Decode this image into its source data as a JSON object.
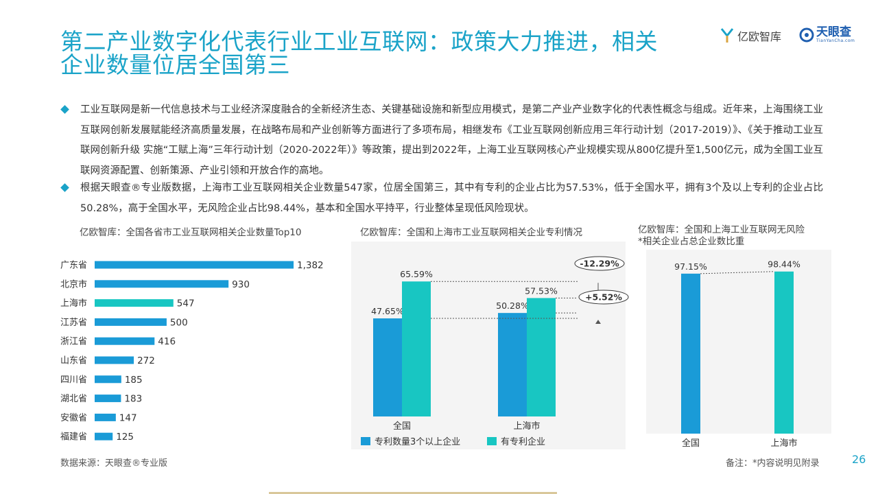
{
  "title": "第二产业数字化代表行业工业互联网：政策大力推进，相关企业数量位居全国第三",
  "logos": {
    "yiou": "亿欧智库",
    "tianyancha": "天眼查",
    "tianyancha_sub": "TianYanCha.com"
  },
  "bullets": [
    "工业互联网是新一代信息技术与工业经济深度融合的全新经济生态、关键基础设施和新型应用模式，是第二产业产业数字化的代表性概念与组成。近年来，上海围绕工业互联网创新发展赋能经济高质量发展，在战略布局和产业创新等方面进行了多项布局，相继发布《工业互联网创新应用三年行动计划（2017-2019）》、《关于推动工业互联网创新升级 实施“工赋上海”三年行动计划（2020-2022年）》等政策，提出到2022年，上海工业互联网核心产业规模实现从800亿提升至1,500亿元，成为全国工业互联网资源配置、创新策源、产业引领和开放合作的高地。",
    "根据天眼查®专业版数据，上海市工业互联网相关企业数量547家，位居全国第三，其中有专利的企业占比为57.53%，低于全国水平，拥有3个及以上专利的企业占比50.28%，高于全国水平，无风险企业占比98.44%，基本和全国水平持平，行业整体呈现低风险现状。"
  ],
  "colors": {
    "accent": "#1aa3c8",
    "blue": "#1a9bd7",
    "teal": "#18c6c2"
  },
  "source": "数据来源：天眼查®专业版",
  "note": "备注：*内容说明见附录",
  "page_number": "26",
  "chart_data": [
    {
      "type": "bar",
      "orientation": "horizontal",
      "title": "亿欧智库：全国各省市工业互联网相关企业数量Top10",
      "categories": [
        "广东省",
        "北京市",
        "上海市",
        "江苏省",
        "浙江省",
        "山东省",
        "四川省",
        "湖北省",
        "安徽省",
        "福建省"
      ],
      "values": [
        1382,
        930,
        547,
        500,
        416,
        272,
        185,
        183,
        147,
        125
      ],
      "value_labels": [
        "1,382",
        "930",
        "547",
        "500",
        "416",
        "272",
        "185",
        "183",
        "147",
        "125"
      ],
      "highlight": "上海市"
    },
    {
      "type": "bar",
      "title": "亿欧智库：全国和上海市工业互联网相关企业专利情况",
      "categories": [
        "全国",
        "上海市"
      ],
      "series": [
        {
          "name": "专利数量3个以上企业",
          "values": [
            47.65,
            50.28
          ],
          "labels": [
            "47.65%",
            "50.28%"
          ],
          "color": "#1a9bd7"
        },
        {
          "name": "有专利企业",
          "values": [
            65.59,
            57.53
          ],
          "labels": [
            "65.59%",
            "57.53%"
          ],
          "color": "#18c6c2"
        }
      ],
      "annotations": [
        "-12.29%",
        "+5.52%"
      ],
      "ylim": [
        0,
        100
      ]
    },
    {
      "type": "bar",
      "title": "亿欧智库：全国和上海工业互联网无风险\n*相关企业占总企业数比重",
      "title_lines": [
        "亿欧智库：全国和上海工业互联网无风险",
        "*相关企业占总企业数比重"
      ],
      "categories": [
        "全国",
        "上海市"
      ],
      "values": [
        97.15,
        98.44
      ],
      "labels": [
        "97.15%",
        "98.44%"
      ],
      "colors": [
        "#1a9bd7",
        "#18c6c2"
      ],
      "ylim": [
        0,
        100
      ]
    }
  ]
}
